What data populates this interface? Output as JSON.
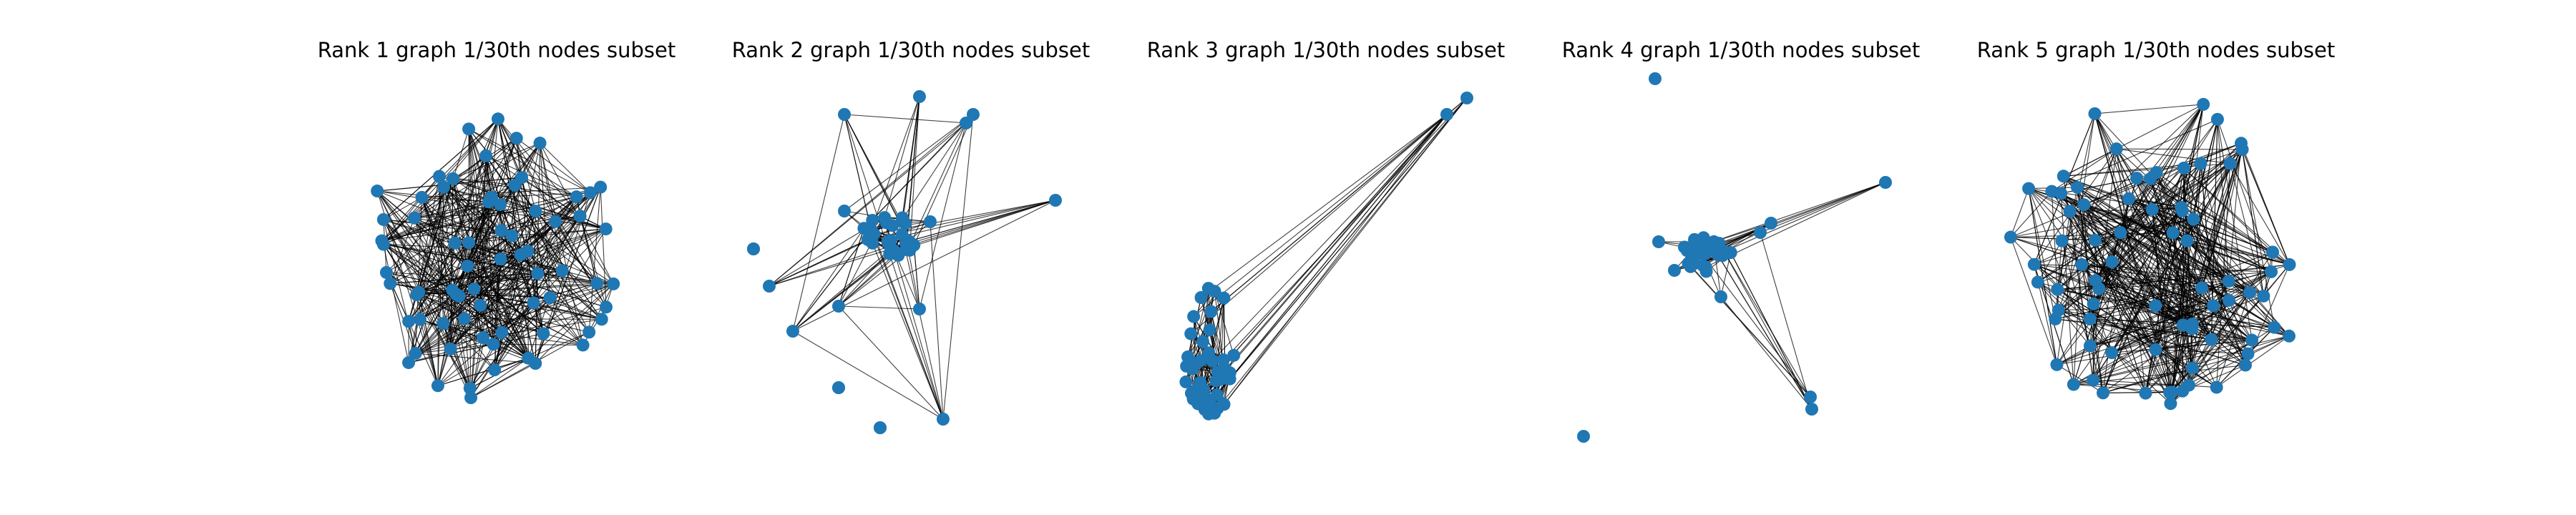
{
  "figure": {
    "node_color": "#1f77b4",
    "edge_color": "#000000",
    "background": "#ffffff",
    "panels": [
      {
        "id": "rank1",
        "title": "Rank 1 graph 1/30th nodes subset",
        "layout": "scattered-cloud",
        "node_count": 70,
        "edge_count": 520,
        "seed": 11
      },
      {
        "id": "rank2",
        "title": "Rank 2 graph 1/30th nodes subset",
        "layout": "central-hub",
        "node_count": 45,
        "edge_count": 160,
        "seed": 23
      },
      {
        "id": "rank3",
        "title": "Rank 3 graph 1/30th nodes subset",
        "layout": "dense-column",
        "node_count": 46,
        "edge_count": 180,
        "seed": 37
      },
      {
        "id": "rank4",
        "title": "Rank 4 graph 1/30th nodes subset",
        "layout": "central-hub",
        "node_count": 40,
        "edge_count": 120,
        "seed": 41
      },
      {
        "id": "rank5",
        "title": "Rank 5 graph 1/30th nodes subset",
        "layout": "scattered-cloud",
        "node_count": 75,
        "edge_count": 560,
        "seed": 53
      }
    ]
  }
}
